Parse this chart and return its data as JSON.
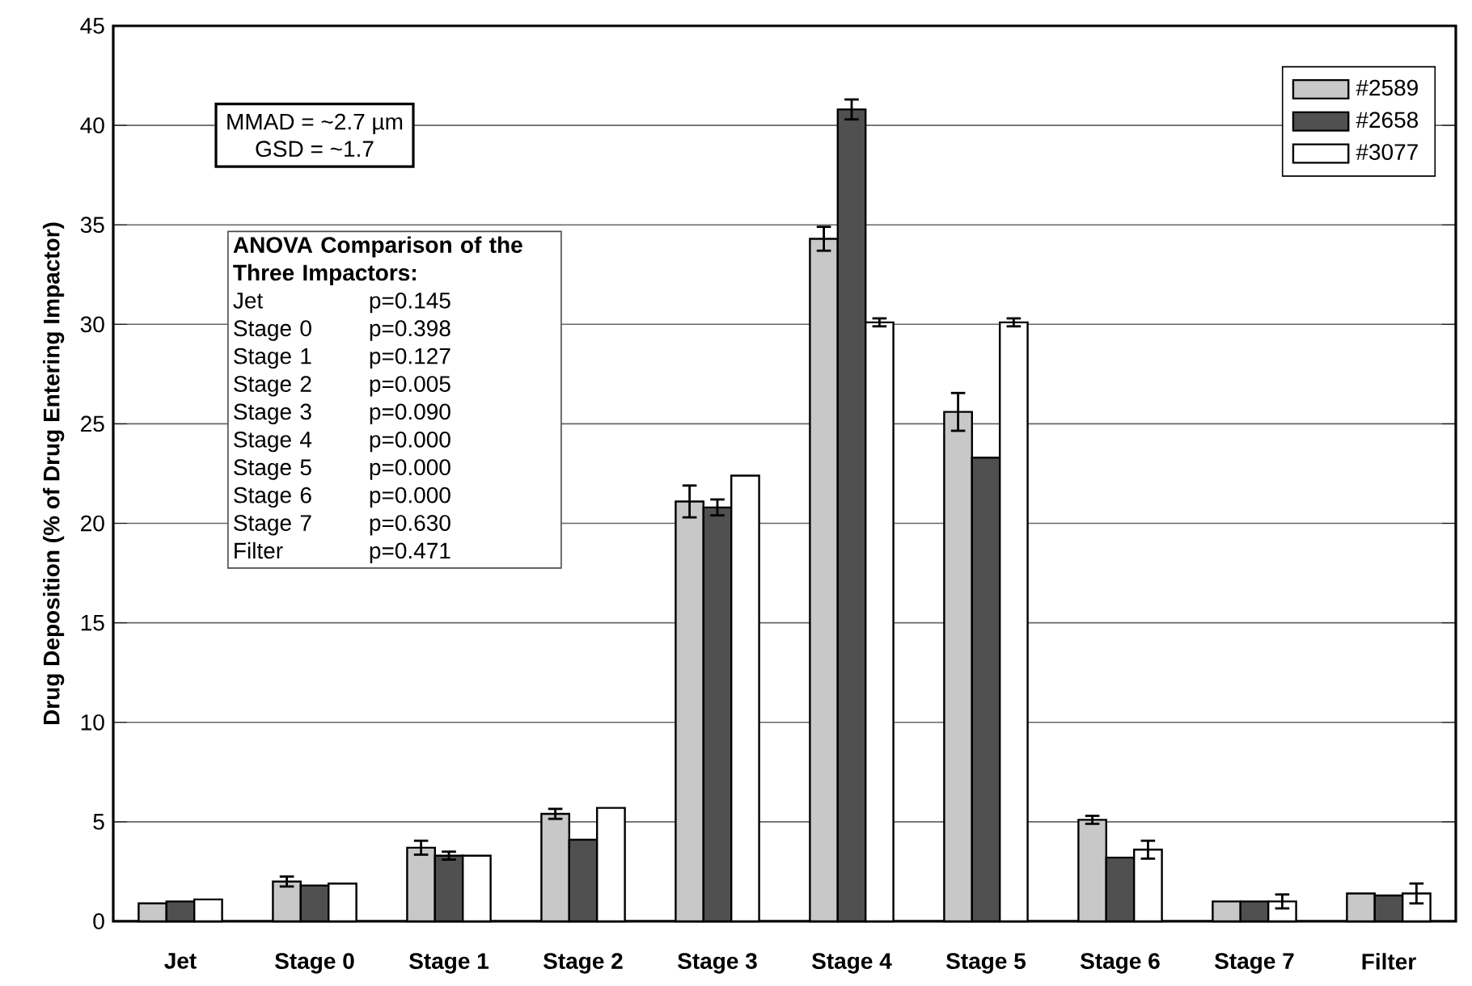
{
  "chart_data": {
    "type": "bar",
    "ylabel": "Drug Deposition (% of Drug Entering Impactor)",
    "categories": [
      "Jet",
      "Stage 0",
      "Stage 1",
      "Stage 2",
      "Stage 3",
      "Stage 4",
      "Stage 5",
      "Stage 6",
      "Stage 7",
      "Filter"
    ],
    "series": [
      {
        "name": "#2589",
        "color": "#c8c8c8",
        "values": [
          0.9,
          2.0,
          3.7,
          5.4,
          21.1,
          34.3,
          25.6,
          5.1,
          1.0,
          1.4
        ],
        "errors": [
          null,
          0.25,
          0.35,
          0.25,
          0.8,
          0.6,
          0.95,
          0.2,
          null,
          null
        ]
      },
      {
        "name": "#2658",
        "color": "#505050",
        "values": [
          1.0,
          1.8,
          3.3,
          4.1,
          20.8,
          40.8,
          23.3,
          3.2,
          1.0,
          1.3
        ],
        "errors": [
          null,
          null,
          0.2,
          null,
          0.4,
          0.5,
          null,
          null,
          null,
          null
        ]
      },
      {
        "name": "#3077",
        "color": "#ffffff",
        "values": [
          1.1,
          1.9,
          3.3,
          5.7,
          22.4,
          30.1,
          30.1,
          3.6,
          1.0,
          1.4
        ],
        "errors": [
          null,
          null,
          null,
          null,
          null,
          0.2,
          0.2,
          0.45,
          0.35,
          0.5
        ]
      }
    ],
    "ylim": [
      0,
      45
    ],
    "yticks": [
      0,
      5,
      10,
      15,
      20,
      25,
      30,
      35,
      40,
      45
    ],
    "grid": "y",
    "legend": "top right",
    "annotations": [
      "MMAD = ~2.7 µm",
      "GSD = ~1.7",
      "ANOVA Comparison of the Three Impactors:",
      "Jet",
      "p=0.145",
      "Stage 0",
      "p=0.398",
      "Stage 1",
      "p=0.127",
      "Stage 2",
      "p=0.005",
      "Stage 3",
      "p=0.090",
      "Stage 4",
      "p=0.000",
      "Stage 5",
      "p=0.000",
      "Stage 6",
      "p=0.000",
      "Stage 7",
      "p=0.630",
      "Filter",
      "p=0.471"
    ]
  }
}
